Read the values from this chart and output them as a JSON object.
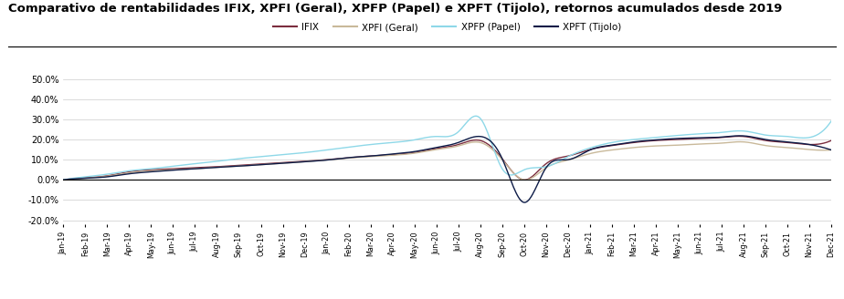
{
  "title": "Comparativo de rentabilidades IFIX, XPFI (Geral), XPFP (Papel) e XPFT (Tijolo), retornos acumulados desde 2019",
  "title_fontsize": 9.5,
  "background_color": "#ffffff",
  "plot_bg_color": "#ffffff",
  "grid_color": "#cccccc",
  "legend_labels": [
    "IFIX",
    "XPFI (Geral)",
    "XPFP (Papel)",
    "XPFT (Tijolo)"
  ],
  "line_colors": [
    "#7b2d3e",
    "#c9b99a",
    "#8ed8e8",
    "#0d1b47"
  ],
  "ylim": [
    -0.22,
    0.58
  ],
  "yticks": [
    -0.2,
    -0.1,
    0.0,
    0.1,
    0.2,
    0.3,
    0.4,
    0.5
  ],
  "ifix": [
    0.0,
    0.01,
    0.02,
    0.04,
    0.05,
    0.055,
    0.06,
    0.065,
    0.072,
    0.078,
    0.085,
    0.092,
    0.1,
    0.11,
    0.118,
    0.125,
    0.135,
    0.155,
    0.175,
    0.195,
    0.105,
    0.0,
    0.08,
    0.118,
    0.15,
    0.17,
    0.185,
    0.195,
    0.2,
    0.205,
    0.21,
    0.215,
    0.195,
    0.185,
    0.175,
    0.195
  ],
  "xpfi": [
    0.0,
    0.008,
    0.018,
    0.035,
    0.045,
    0.05,
    0.055,
    0.062,
    0.068,
    0.075,
    0.082,
    0.09,
    0.098,
    0.108,
    0.115,
    0.122,
    0.132,
    0.15,
    0.168,
    0.185,
    0.1,
    0.0,
    0.06,
    0.098,
    0.13,
    0.148,
    0.16,
    0.168,
    0.172,
    0.178,
    0.182,
    0.188,
    0.17,
    0.16,
    0.15,
    0.148
  ],
  "xpfp": [
    0.0,
    0.015,
    0.028,
    0.045,
    0.055,
    0.068,
    0.08,
    0.092,
    0.105,
    0.115,
    0.125,
    0.135,
    0.148,
    0.162,
    0.175,
    0.185,
    0.198,
    0.215,
    0.238,
    0.305,
    0.055,
    0.05,
    0.065,
    0.115,
    0.158,
    0.185,
    0.2,
    0.21,
    0.22,
    0.228,
    0.235,
    0.242,
    0.222,
    0.215,
    0.21,
    0.292
  ],
  "xpft": [
    0.0,
    0.008,
    0.015,
    0.03,
    0.04,
    0.048,
    0.055,
    0.062,
    0.068,
    0.075,
    0.082,
    0.09,
    0.098,
    0.11,
    0.118,
    0.128,
    0.14,
    0.16,
    0.185,
    0.215,
    0.105,
    -0.112,
    0.06,
    0.1,
    0.148,
    0.172,
    0.188,
    0.198,
    0.205,
    0.208,
    0.212,
    0.218,
    0.2,
    0.188,
    0.175,
    0.148
  ],
  "xtick_labels": [
    "Jan-19",
    "Jan-19",
    "Feb-19",
    "Mar-19",
    "Mar-19",
    "Apr-19",
    "May-19",
    "May-19",
    "Jun-19",
    "Jul-19",
    "Jul-19",
    "Aug-19",
    "Sep-19",
    "Sep-19",
    "Oct-19",
    "Nov-19",
    "Nov-19",
    "Dec-19",
    "Jan-20",
    "Jan-20",
    "Feb-20",
    "Mar-20",
    "Mar-20",
    "Apr-20",
    "May-20",
    "May-20",
    "Jun-20",
    "Jul-20",
    "Jul-20",
    "Aug-20",
    "Sep-20",
    "Sep-20",
    "Oct-20",
    "Nov-20",
    "Nov-20",
    "Dec-20",
    "Jan-21",
    "Jan-21",
    "Feb-21",
    "Mar-21",
    "Mar-21"
  ]
}
